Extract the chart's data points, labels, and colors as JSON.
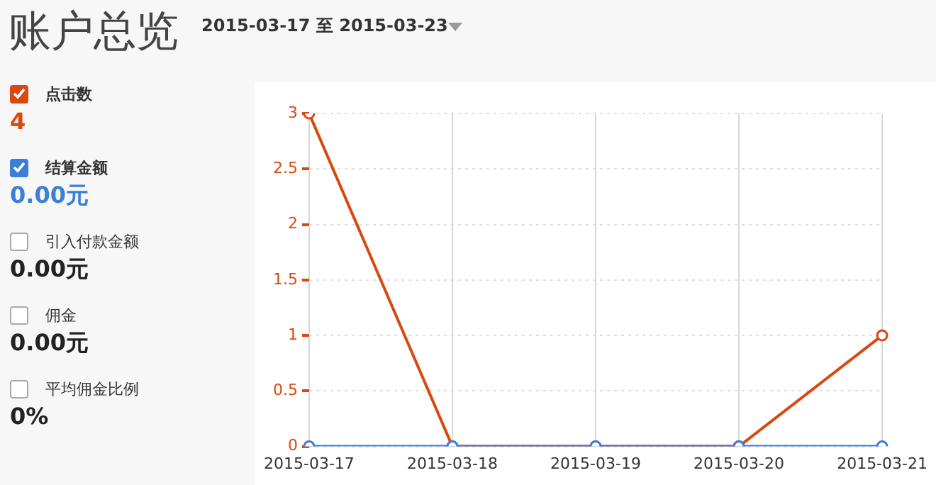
{
  "chart_data": {
    "type": "line",
    "title": "账户总览",
    "subtitle": "2015-03-17 至 2015-03-23",
    "categories": [
      "2015-03-17",
      "2015-03-18",
      "2015-03-19",
      "2015-03-20",
      "2015-03-21"
    ],
    "series": [
      {
        "name": "点击数",
        "color": "#d9480f",
        "values": [
          3,
          0,
          0,
          0,
          1
        ]
      },
      {
        "name": "结算金额",
        "color": "#3b7fdb",
        "values": [
          0,
          0,
          0,
          0,
          0
        ]
      }
    ],
    "ylim": [
      0,
      3
    ],
    "yticks": [
      0,
      0.5,
      1,
      1.5,
      2,
      2.5,
      3
    ],
    "grid": true,
    "legend": "left",
    "marker": "circle",
    "line_style": "solid",
    "annotations": [
      "4",
      "0.00元",
      "引入付款金额",
      "0.00元",
      "佣金",
      "0.00元",
      "平均佣金比例",
      "0%"
    ]
  }
}
